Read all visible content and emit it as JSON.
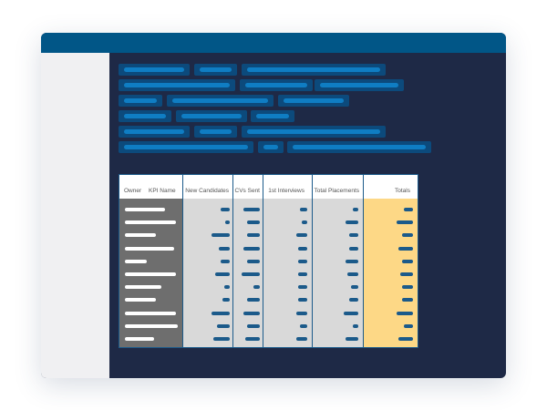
{
  "table": {
    "headers": {
      "owner": "Owner",
      "kpi_name": "KPI Name",
      "new_candidates": "New Candidates",
      "cvs_sent": "CVs Sent",
      "first_interviews": "1st Interviews",
      "total_placements": "Total Placements",
      "totals": "Totals"
    },
    "row_count": 11
  },
  "colors": {
    "titlebar": "#015687",
    "main": "#1e2946",
    "sidebar": "#f0f0f2",
    "totals_column": "#fdd886",
    "data_column": "#d9d9d9",
    "owner_column": "#6e6e6e",
    "accent": "#1b5a8a"
  }
}
